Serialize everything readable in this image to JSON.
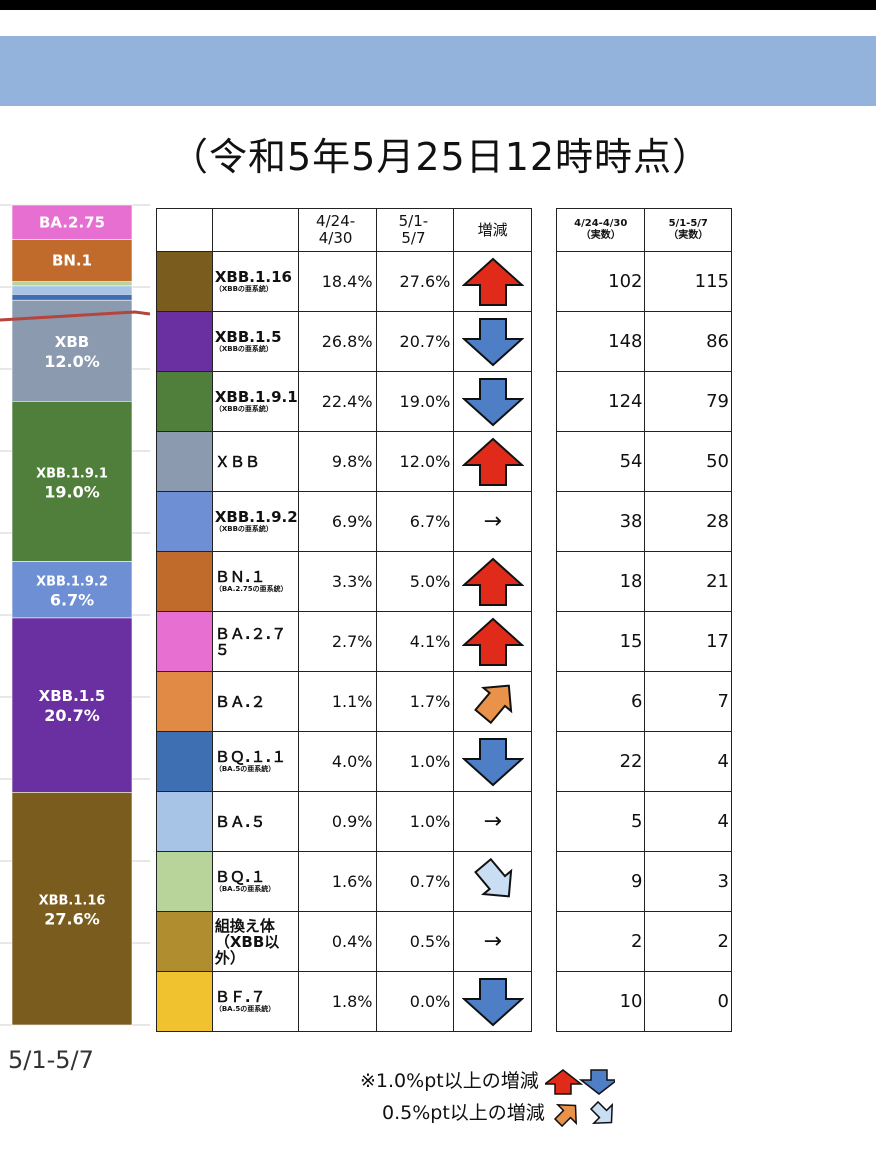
{
  "subtitle": "（令和5年5月25日12時時点）",
  "chart_data": {
    "type": "bar",
    "stacked": true,
    "categories": [
      "5/1-5/7"
    ],
    "segments_top_to_bottom": [
      {
        "name": "BA.2.75",
        "value": 4.1,
        "label": "BA.2.75",
        "color": "#e76fd1"
      },
      {
        "name": "BN.1",
        "value": 5.0,
        "label": "BN.1",
        "color": "#c06a2b"
      },
      {
        "name": "minor-1",
        "value": 0.5,
        "label": "",
        "color": "#b8d49a"
      },
      {
        "name": "minor-2",
        "value": 1.0,
        "label": "",
        "color": "#a7c3e6"
      },
      {
        "name": "minor-3",
        "value": 0.7,
        "label": "",
        "color": "#3f6fb3"
      },
      {
        "name": "XBB",
        "value": 12.0,
        "label": "XBB",
        "pct_label": "12.0%",
        "color": "#8c9ab0"
      },
      {
        "name": "XBB.1.9.1",
        "value": 19.0,
        "label": "XBB.1.9.1",
        "pct_label": "19.0%",
        "color": "#4f7f3a"
      },
      {
        "name": "XBB.1.9.2",
        "value": 6.7,
        "label": "XBB.1.9.2",
        "pct_label": "6.7%",
        "color": "#6f8fd4"
      },
      {
        "name": "XBB.1.5",
        "value": 20.7,
        "label": "XBB.1.5",
        "pct_label": "20.7%",
        "color": "#6a2fa0"
      },
      {
        "name": "XBB.1.16",
        "value": 27.6,
        "label": "XBB.1.16",
        "pct_label": "27.6%",
        "color": "#7a5c1e"
      }
    ]
  },
  "table": {
    "headers": {
      "col1": "4/24-\n4/30",
      "col2": "5/1-\n5/7",
      "col3": "増減"
    },
    "rows": [
      {
        "name": "XBB.1.16",
        "sub": "（XBBの亜系統）",
        "color": "#7a5c1e",
        "p1": "18.4%",
        "p2": "27.6%",
        "trend": "up"
      },
      {
        "name": "XBB.1.5",
        "sub": "（XBBの亜系統）",
        "color": "#6a2fa0",
        "p1": "26.8%",
        "p2": "20.7%",
        "trend": "down"
      },
      {
        "name": "XBB.1.9.1",
        "sub": "（XBBの亜系統）",
        "color": "#4f7f3a",
        "p1": "22.4%",
        "p2": "19.0%",
        "trend": "down"
      },
      {
        "name": "ＸＢＢ",
        "sub": "",
        "color": "#8c9ab0",
        "p1": "9.8%",
        "p2": "12.0%",
        "trend": "up"
      },
      {
        "name": "XBB.1.9.2",
        "sub": "（XBBの亜系統）",
        "color": "#6f8fd4",
        "p1": "6.9%",
        "p2": "6.7%",
        "trend": "flat"
      },
      {
        "name": "ＢＮ.１",
        "sub": "（BA.2.75の亜系統）",
        "color": "#c06a2b",
        "p1": "3.3%",
        "p2": "5.0%",
        "trend": "up"
      },
      {
        "name": "ＢＡ.２.７５",
        "sub": "",
        "color": "#e76fd1",
        "p1": "2.7%",
        "p2": "4.1%",
        "trend": "up"
      },
      {
        "name": "ＢＡ.２",
        "sub": "",
        "color": "#e08a45",
        "p1": "1.1%",
        "p2": "1.7%",
        "trend": "up-small"
      },
      {
        "name": "ＢＱ.１.１",
        "sub": "（BA.5の亜系統）",
        "color": "#3f6fb3",
        "p1": "4.0%",
        "p2": "1.0%",
        "trend": "down"
      },
      {
        "name": "ＢＡ.５",
        "sub": "",
        "color": "#a7c3e6",
        "p1": "0.9%",
        "p2": "1.0%",
        "trend": "flat"
      },
      {
        "name": "ＢＱ.１",
        "sub": "（BA.5の亜系統）",
        "color": "#b8d49a",
        "p1": "1.6%",
        "p2": "0.7%",
        "trend": "down-small"
      },
      {
        "name": "組換え体\n（XBB以外）",
        "sub": "",
        "color": "#b08d2e",
        "p1": "0.4%",
        "p2": "0.5%",
        "trend": "flat"
      },
      {
        "name": "ＢＦ.７",
        "sub": "（BA.5の亜系統）",
        "color": "#f0c22f",
        "p1": "1.8%",
        "p2": "0.0%",
        "trend": "down"
      }
    ]
  },
  "counts": {
    "headers": {
      "col1": "4/24-4/30\n（実数）",
      "col2": "5/1-5/7\n（実数）"
    },
    "rows": [
      [
        "102",
        "115"
      ],
      [
        "148",
        "86"
      ],
      [
        "124",
        "79"
      ],
      [
        "54",
        "50"
      ],
      [
        "38",
        "28"
      ],
      [
        "18",
        "21"
      ],
      [
        "15",
        "17"
      ],
      [
        "6",
        "7"
      ],
      [
        "22",
        "4"
      ],
      [
        "5",
        "4"
      ],
      [
        "9",
        "3"
      ],
      [
        "2",
        "2"
      ],
      [
        "10",
        "0"
      ]
    ]
  },
  "legend": {
    "line1": "※1.0%pt以上の増減",
    "line2": "0.5%pt以上の増減"
  },
  "flat_arrow": "→",
  "colors": {
    "up": "#e02b1a",
    "down": "#4e7fc6",
    "up_small": "#e8924a",
    "down_small": "#c9ddf3"
  }
}
